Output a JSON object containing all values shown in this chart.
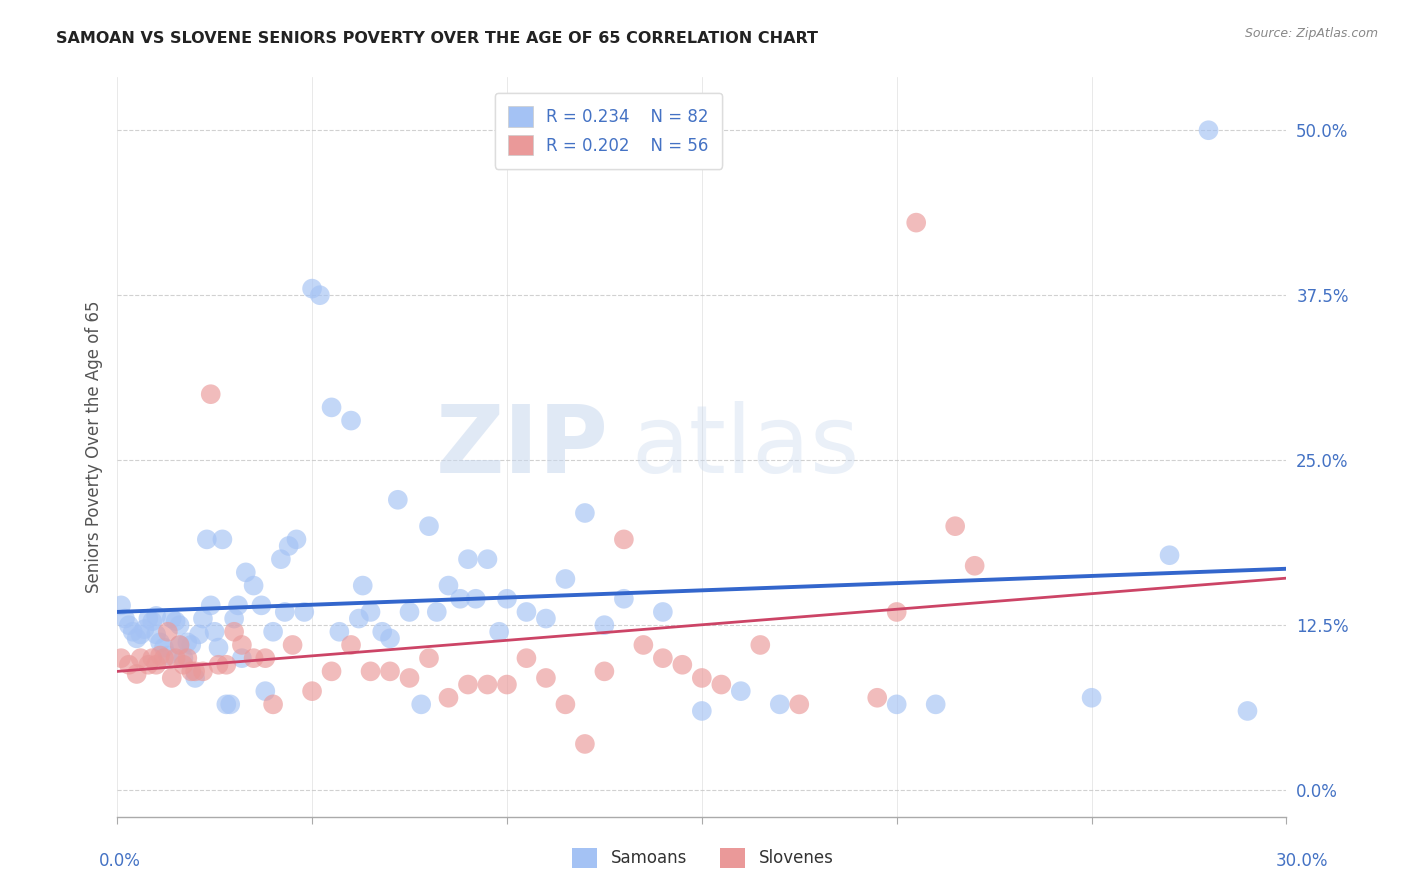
{
  "title": "SAMOAN VS SLOVENE SENIORS POVERTY OVER THE AGE OF 65 CORRELATION CHART",
  "source": "Source: ZipAtlas.com",
  "ylabel": "Seniors Poverty Over the Age of 65",
  "xlim": [
    0.0,
    0.3
  ],
  "ylim": [
    -0.02,
    0.54
  ],
  "samoans_color": "#a4c2f4",
  "slovenes_color": "#ea9999",
  "samoans_line_color": "#3366cc",
  "slovenes_line_color": "#cc4466",
  "samoans_R": "0.234",
  "samoans_N": "82",
  "slovenes_R": "0.202",
  "slovenes_N": "56",
  "watermark_zip": "ZIP",
  "watermark_atlas": "atlas",
  "samoans_x": [
    0.001,
    0.002,
    0.003,
    0.004,
    0.005,
    0.006,
    0.007,
    0.008,
    0.009,
    0.01,
    0.01,
    0.011,
    0.012,
    0.013,
    0.014,
    0.015,
    0.016,
    0.016,
    0.017,
    0.018,
    0.019,
    0.02,
    0.021,
    0.022,
    0.023,
    0.024,
    0.025,
    0.026,
    0.027,
    0.028,
    0.029,
    0.03,
    0.031,
    0.032,
    0.033,
    0.035,
    0.037,
    0.038,
    0.04,
    0.042,
    0.043,
    0.044,
    0.046,
    0.048,
    0.05,
    0.052,
    0.055,
    0.057,
    0.06,
    0.062,
    0.063,
    0.065,
    0.068,
    0.07,
    0.072,
    0.075,
    0.078,
    0.08,
    0.082,
    0.085,
    0.088,
    0.09,
    0.092,
    0.095,
    0.098,
    0.1,
    0.105,
    0.11,
    0.115,
    0.12,
    0.125,
    0.13,
    0.14,
    0.15,
    0.16,
    0.17,
    0.2,
    0.21,
    0.25,
    0.27,
    0.28,
    0.29
  ],
  "samoans_y": [
    0.14,
    0.13,
    0.125,
    0.12,
    0.115,
    0.118,
    0.122,
    0.13,
    0.128,
    0.132,
    0.118,
    0.112,
    0.108,
    0.102,
    0.13,
    0.128,
    0.11,
    0.125,
    0.1,
    0.112,
    0.11,
    0.085,
    0.118,
    0.13,
    0.19,
    0.14,
    0.12,
    0.108,
    0.19,
    0.065,
    0.065,
    0.13,
    0.14,
    0.1,
    0.165,
    0.155,
    0.14,
    0.075,
    0.12,
    0.175,
    0.135,
    0.185,
    0.19,
    0.135,
    0.38,
    0.375,
    0.29,
    0.12,
    0.28,
    0.13,
    0.155,
    0.135,
    0.12,
    0.115,
    0.22,
    0.135,
    0.065,
    0.2,
    0.135,
    0.155,
    0.145,
    0.175,
    0.145,
    0.175,
    0.12,
    0.145,
    0.135,
    0.13,
    0.16,
    0.21,
    0.125,
    0.145,
    0.135,
    0.06,
    0.075,
    0.065,
    0.065,
    0.065,
    0.07,
    0.178,
    0.5,
    0.06
  ],
  "slovenes_x": [
    0.001,
    0.003,
    0.005,
    0.006,
    0.008,
    0.009,
    0.01,
    0.011,
    0.012,
    0.013,
    0.014,
    0.015,
    0.016,
    0.017,
    0.018,
    0.019,
    0.02,
    0.022,
    0.024,
    0.026,
    0.028,
    0.03,
    0.032,
    0.035,
    0.038,
    0.04,
    0.045,
    0.05,
    0.055,
    0.06,
    0.065,
    0.07,
    0.075,
    0.08,
    0.085,
    0.09,
    0.095,
    0.1,
    0.105,
    0.11,
    0.115,
    0.12,
    0.125,
    0.13,
    0.135,
    0.14,
    0.145,
    0.15,
    0.155,
    0.165,
    0.175,
    0.195,
    0.2,
    0.205,
    0.215,
    0.22
  ],
  "slovenes_y": [
    0.1,
    0.095,
    0.088,
    0.1,
    0.095,
    0.1,
    0.095,
    0.102,
    0.1,
    0.12,
    0.085,
    0.1,
    0.11,
    0.095,
    0.1,
    0.09,
    0.09,
    0.09,
    0.3,
    0.095,
    0.095,
    0.12,
    0.11,
    0.1,
    0.1,
    0.065,
    0.11,
    0.075,
    0.09,
    0.11,
    0.09,
    0.09,
    0.085,
    0.1,
    0.07,
    0.08,
    0.08,
    0.08,
    0.1,
    0.085,
    0.065,
    0.035,
    0.09,
    0.19,
    0.11,
    0.1,
    0.095,
    0.085,
    0.08,
    0.11,
    0.065,
    0.07,
    0.135,
    0.43,
    0.2,
    0.17
  ]
}
